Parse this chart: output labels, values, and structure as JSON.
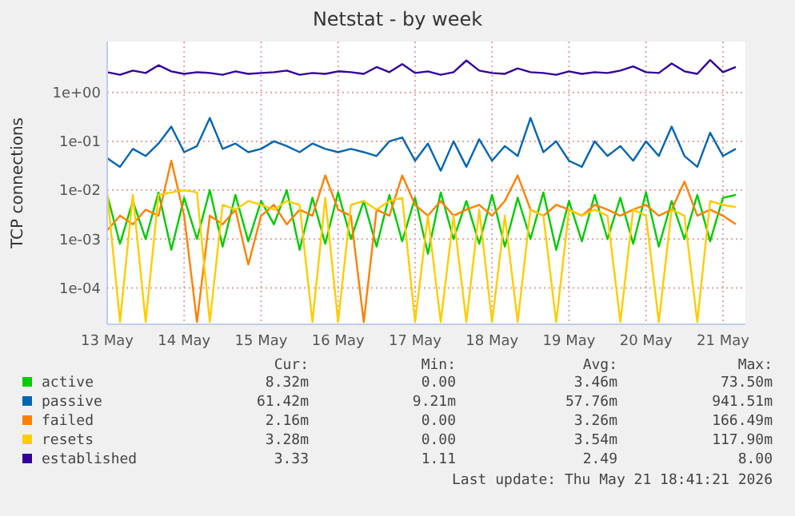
{
  "chart_data": {
    "type": "line",
    "title": "Netstat - by week",
    "ylabel": "TCP connections",
    "log": true,
    "grid": true,
    "legend": "bottom",
    "marker": "none",
    "line_style": "solid",
    "ylim": [
      1.8e-05,
      11
    ],
    "yticks": [
      {
        "value": 0.0001,
        "label": "1e-04"
      },
      {
        "value": 0.001,
        "label": "1e-03"
      },
      {
        "value": 0.01,
        "label": "1e-02"
      },
      {
        "value": 0.1,
        "label": "1e-01"
      },
      {
        "value": 1,
        "label": "1e+00"
      }
    ],
    "xlim": [
      "2026-05-13T00:00",
      "2026-05-21T07:00"
    ],
    "xticks": [
      {
        "value": "2026-05-13",
        "label": "13 May"
      },
      {
        "value": "2026-05-14",
        "label": "14 May"
      },
      {
        "value": "2026-05-15",
        "label": "15 May"
      },
      {
        "value": "2026-05-16",
        "label": "16 May"
      },
      {
        "value": "2026-05-17",
        "label": "17 May"
      },
      {
        "value": "2026-05-18",
        "label": "18 May"
      },
      {
        "value": "2026-05-19",
        "label": "19 May"
      },
      {
        "value": "2026-05-20",
        "label": "20 May"
      },
      {
        "value": "2026-05-21",
        "label": "21 May"
      }
    ],
    "x": [
      "2026-05-13T00:00",
      "2026-05-13T04:00",
      "2026-05-13T08:00",
      "2026-05-13T12:00",
      "2026-05-13T16:00",
      "2026-05-13T20:00",
      "2026-05-14T00:00",
      "2026-05-14T04:00",
      "2026-05-14T08:00",
      "2026-05-14T12:00",
      "2026-05-14T16:00",
      "2026-05-14T20:00",
      "2026-05-15T00:00",
      "2026-05-15T04:00",
      "2026-05-15T08:00",
      "2026-05-15T12:00",
      "2026-05-15T16:00",
      "2026-05-15T20:00",
      "2026-05-16T00:00",
      "2026-05-16T04:00",
      "2026-05-16T08:00",
      "2026-05-16T12:00",
      "2026-05-16T16:00",
      "2026-05-16T20:00",
      "2026-05-17T00:00",
      "2026-05-17T04:00",
      "2026-05-17T08:00",
      "2026-05-17T12:00",
      "2026-05-17T16:00",
      "2026-05-17T20:00",
      "2026-05-18T00:00",
      "2026-05-18T04:00",
      "2026-05-18T08:00",
      "2026-05-18T12:00",
      "2026-05-18T16:00",
      "2026-05-18T20:00",
      "2026-05-19T00:00",
      "2026-05-19T04:00",
      "2026-05-19T08:00",
      "2026-05-19T12:00",
      "2026-05-19T16:00",
      "2026-05-19T20:00",
      "2026-05-20T00:00",
      "2026-05-20T04:00",
      "2026-05-20T08:00",
      "2026-05-20T12:00",
      "2026-05-20T16:00",
      "2026-05-20T20:00",
      "2026-05-21T00:00",
      "2026-05-21T04:00"
    ],
    "series": [
      {
        "name": "active",
        "color": "#00cc00",
        "values": [
          0.008,
          0.0008,
          0.006,
          0.001,
          0.009,
          0.0006,
          0.007,
          0.001,
          0.01,
          0.0007,
          0.008,
          0.0009,
          0.006,
          0.002,
          0.01,
          0.0006,
          0.007,
          0.0008,
          0.009,
          0.001,
          0.006,
          0.0007,
          0.008,
          0.0009,
          0.007,
          0.0005,
          0.009,
          0.001,
          0.006,
          0.0008,
          0.008,
          0.0007,
          0.007,
          0.001,
          0.009,
          0.0006,
          0.006,
          0.0009,
          0.008,
          0.001,
          0.007,
          0.0008,
          0.009,
          0.0007,
          0.006,
          0.001,
          0.008,
          0.0009,
          0.007,
          0.008
        ]
      },
      {
        "name": "passive",
        "color": "#0066b3",
        "values": [
          0.045,
          0.03,
          0.07,
          0.05,
          0.09,
          0.2,
          0.06,
          0.08,
          0.3,
          0.07,
          0.09,
          0.06,
          0.07,
          0.1,
          0.08,
          0.06,
          0.09,
          0.07,
          0.06,
          0.07,
          0.06,
          0.05,
          0.1,
          0.12,
          0.04,
          0.09,
          0.025,
          0.1,
          0.03,
          0.11,
          0.04,
          0.08,
          0.05,
          0.3,
          0.06,
          0.1,
          0.04,
          0.03,
          0.1,
          0.05,
          0.08,
          0.04,
          0.1,
          0.05,
          0.2,
          0.05,
          0.03,
          0.15,
          0.05,
          0.07
        ]
      },
      {
        "name": "failed",
        "color": "#ff8000",
        "values": [
          0.0015,
          0.003,
          0.002,
          0.004,
          0.003,
          0.04,
          0.003,
          2e-05,
          0.003,
          0.002,
          0.004,
          0.0003,
          0.003,
          0.005,
          0.002,
          0.004,
          0.003,
          0.02,
          0.004,
          0.003,
          2e-05,
          0.004,
          0.003,
          0.02,
          0.005,
          0.003,
          0.006,
          0.003,
          0.004,
          0.005,
          0.003,
          0.006,
          0.02,
          0.004,
          0.003,
          0.005,
          0.004,
          0.003,
          0.005,
          0.004,
          0.003,
          0.004,
          0.005,
          0.003,
          0.004,
          0.015,
          0.003,
          0.004,
          0.003,
          0.002
        ]
      },
      {
        "name": "resets",
        "color": "#ffcc00",
        "values": [
          0.009,
          2e-05,
          0.008,
          2e-05,
          0.008,
          0.009,
          0.01,
          0.009,
          2e-05,
          0.005,
          0.004,
          0.006,
          0.005,
          0.004,
          0.006,
          0.005,
          2e-05,
          0.007,
          2e-05,
          0.005,
          0.006,
          0.004,
          0.006,
          0.007,
          2e-05,
          0.003,
          2e-05,
          0.003,
          2e-05,
          0.004,
          2e-05,
          0.003,
          2e-05,
          0.004,
          0.003,
          2e-05,
          0.004,
          0.003,
          0.004,
          0.003,
          2e-05,
          0.004,
          0.003,
          2e-05,
          0.004,
          0.003,
          2e-05,
          0.006,
          0.005,
          0.0045
        ]
      },
      {
        "name": "established",
        "color": "#330099",
        "values": [
          2.6,
          2.3,
          2.8,
          2.5,
          3.6,
          2.7,
          2.4,
          2.6,
          2.5,
          2.3,
          2.7,
          2.4,
          2.5,
          2.6,
          2.8,
          2.3,
          2.5,
          2.4,
          2.7,
          2.6,
          2.4,
          3.3,
          2.6,
          3.8,
          2.5,
          2.7,
          2.3,
          2.6,
          4.5,
          2.8,
          2.5,
          2.4,
          3.1,
          2.6,
          2.5,
          2.3,
          2.7,
          2.4,
          2.6,
          2.5,
          2.8,
          3.4,
          2.6,
          2.5,
          3.9,
          2.7,
          2.4,
          4.6,
          2.6,
          3.3
        ]
      }
    ],
    "annotations": [
      "Cur:",
      "Min:",
      "Avg:",
      "Max:",
      "8.32m",
      "0.00",
      "3.46m",
      "73.50m",
      "61.42m",
      "9.21m",
      "57.76m",
      "941.51m",
      "2.16m",
      "0.00",
      "3.26m",
      "166.49m",
      "3.28m",
      "0.00",
      "3.54m",
      "117.90m",
      "3.33",
      "1.11",
      "2.49",
      "8.00",
      "Last update: Thu May 21 18:41:21 2026"
    ]
  }
}
